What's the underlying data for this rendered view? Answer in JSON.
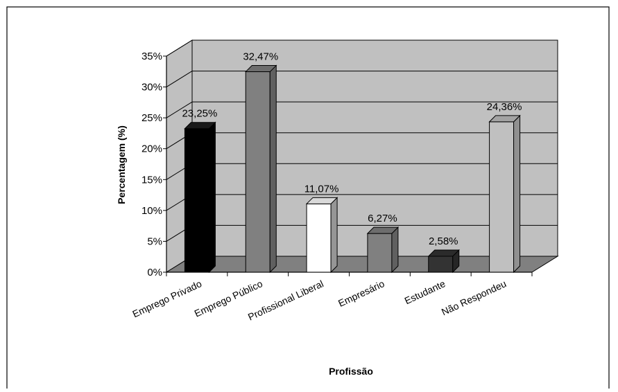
{
  "chart_data": {
    "type": "bar",
    "title": "",
    "xlabel": "Profissão",
    "ylabel": "Percentagem (%)",
    "ylim": [
      0,
      35
    ],
    "y_ticks": [
      0,
      5,
      10,
      15,
      20,
      25,
      30,
      35
    ],
    "y_tick_labels": [
      "0%",
      "5%",
      "10%",
      "15%",
      "20%",
      "25%",
      "30%",
      "35%"
    ],
    "categories": [
      "Emprego Privado",
      "Emprego Público",
      "Profissional Liberal",
      "Empresário",
      "Estudante",
      "Não Respondeu"
    ],
    "values": [
      23.25,
      32.47,
      11.07,
      6.27,
      2.58,
      24.36
    ],
    "data_labels": [
      "23,25%",
      "32,47%",
      "11,07%",
      "6,27%",
      "2,58%",
      "24,36%"
    ],
    "colors": [
      "#000000",
      "#808080",
      "#ffffff",
      "#808080",
      "#333333",
      "#c0c0c0"
    ],
    "wall_color": "#c0c0c0",
    "floor_color": "#808080",
    "grid": true,
    "legend": "none",
    "style": "3d-column"
  }
}
